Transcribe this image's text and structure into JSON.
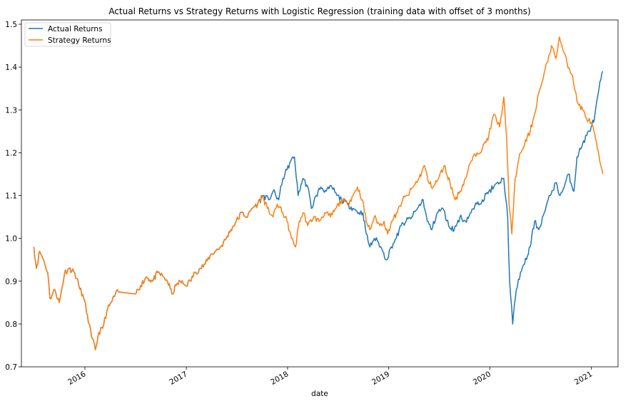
{
  "chart_data": {
    "type": "line",
    "title": "Actual Returns vs Strategy Returns with Logistic Regression (training data with offset of 3 months)",
    "xlabel": "date",
    "ylabel": "",
    "xlim": [
      "2015-05-17",
      "2021-04-07"
    ],
    "ylim": [
      0.7,
      1.51
    ],
    "x_ticks": [
      {
        "date": "2016-01-01",
        "label": "2016"
      },
      {
        "date": "2017-01-01",
        "label": "2017"
      },
      {
        "date": "2018-01-01",
        "label": "2018"
      },
      {
        "date": "2019-01-01",
        "label": "2019"
      },
      {
        "date": "2020-01-01",
        "label": "2020"
      },
      {
        "date": "2021-01-01",
        "label": "2021"
      }
    ],
    "y_ticks": [
      0.7,
      0.8,
      0.9,
      1.0,
      1.1,
      1.2,
      1.3,
      1.4,
      1.5
    ],
    "y_tick_labels": [
      "0.7",
      "0.8",
      "0.9",
      "1.0",
      "1.1",
      "1.2",
      "1.3",
      "1.4",
      "1.5"
    ],
    "legend": {
      "position": "upper-left"
    },
    "grid": false,
    "series": [
      {
        "name": "Actual Returns",
        "color": "#1f77b4",
        "points": [
          [
            "2015-07-01",
            0.98
          ],
          [
            "2015-07-10",
            0.93
          ],
          [
            "2015-07-22",
            0.97
          ],
          [
            "2015-08-05",
            0.95
          ],
          [
            "2015-08-20",
            0.92
          ],
          [
            "2015-08-28",
            0.86
          ],
          [
            "2015-09-15",
            0.88
          ],
          [
            "2015-10-01",
            0.85
          ],
          [
            "2015-10-20",
            0.92
          ],
          [
            "2015-11-05",
            0.93
          ],
          [
            "2015-11-25",
            0.92
          ],
          [
            "2015-12-10",
            0.89
          ],
          [
            "2015-12-28",
            0.86
          ],
          [
            "2016-01-10",
            0.82
          ],
          [
            "2016-01-25",
            0.77
          ],
          [
            "2016-02-08",
            0.74
          ],
          [
            "2016-02-20",
            0.78
          ],
          [
            "2016-03-05",
            0.79
          ],
          [
            "2016-03-20",
            0.83
          ],
          [
            "2016-04-05",
            0.85
          ],
          [
            "2016-04-20",
            0.87
          ],
          [
            "2016-05-01",
            0.875
          ],
          [
            "2016-07-01",
            0.87
          ],
          [
            "2016-07-20",
            0.89
          ],
          [
            "2016-08-10",
            0.91
          ],
          [
            "2016-09-01",
            0.9
          ],
          [
            "2016-09-20",
            0.92
          ],
          [
            "2016-10-10",
            0.91
          ],
          [
            "2016-10-25",
            0.9
          ],
          [
            "2016-11-10",
            0.87
          ],
          [
            "2016-11-25",
            0.89
          ],
          [
            "2016-12-10",
            0.9
          ],
          [
            "2016-12-28",
            0.89
          ],
          [
            "2017-01-15",
            0.9
          ],
          [
            "2017-02-01",
            0.92
          ],
          [
            "2017-02-20",
            0.93
          ],
          [
            "2017-03-10",
            0.94
          ],
          [
            "2017-03-28",
            0.96
          ],
          [
            "2017-04-15",
            0.97
          ],
          [
            "2017-05-05",
            0.98
          ],
          [
            "2017-05-25",
            1.0
          ],
          [
            "2017-06-10",
            1.02
          ],
          [
            "2017-06-30",
            1.04
          ],
          [
            "2017-07-20",
            1.06
          ],
          [
            "2017-08-10",
            1.05
          ],
          [
            "2017-08-25",
            1.07
          ],
          [
            "2017-09-15",
            1.08
          ],
          [
            "2017-10-05",
            1.1
          ],
          [
            "2017-10-25",
            1.09
          ],
          [
            "2017-11-10",
            1.11
          ],
          [
            "2017-11-30",
            1.09
          ],
          [
            "2017-12-15",
            1.14
          ],
          [
            "2017-12-30",
            1.16
          ],
          [
            "2018-01-12",
            1.18
          ],
          [
            "2018-01-26",
            1.19
          ],
          [
            "2018-02-08",
            1.1
          ],
          [
            "2018-02-25",
            1.14
          ],
          [
            "2018-03-15",
            1.12
          ],
          [
            "2018-03-28",
            1.07
          ],
          [
            "2018-04-15",
            1.1
          ],
          [
            "2018-05-01",
            1.12
          ],
          [
            "2018-05-20",
            1.11
          ],
          [
            "2018-06-10",
            1.12
          ],
          [
            "2018-06-28",
            1.1
          ],
          [
            "2018-07-15",
            1.09
          ],
          [
            "2018-08-05",
            1.08
          ],
          [
            "2018-08-25",
            1.07
          ],
          [
            "2018-09-15",
            1.06
          ],
          [
            "2018-09-30",
            1.06
          ],
          [
            "2018-10-12",
            1.01
          ],
          [
            "2018-10-25",
            0.98
          ],
          [
            "2018-11-10",
            1.0
          ],
          [
            "2018-11-25",
            0.99
          ],
          [
            "2018-12-10",
            0.97
          ],
          [
            "2018-12-24",
            0.95
          ],
          [
            "2019-01-10",
            0.98
          ],
          [
            "2019-01-28",
            1.0
          ],
          [
            "2019-02-15",
            1.03
          ],
          [
            "2019-03-05",
            1.04
          ],
          [
            "2019-03-25",
            1.05
          ],
          [
            "2019-04-15",
            1.07
          ],
          [
            "2019-05-05",
            1.09
          ],
          [
            "2019-05-20",
            1.04
          ],
          [
            "2019-06-05",
            1.02
          ],
          [
            "2019-06-25",
            1.06
          ],
          [
            "2019-07-15",
            1.07
          ],
          [
            "2019-08-05",
            1.03
          ],
          [
            "2019-08-25",
            1.02
          ],
          [
            "2019-09-15",
            1.05
          ],
          [
            "2019-10-05",
            1.04
          ],
          [
            "2019-10-25",
            1.06
          ],
          [
            "2019-11-15",
            1.08
          ],
          [
            "2019-12-05",
            1.09
          ],
          [
            "2019-12-28",
            1.11
          ],
          [
            "2020-01-15",
            1.12
          ],
          [
            "2020-02-05",
            1.13
          ],
          [
            "2020-02-20",
            1.14
          ],
          [
            "2020-03-05",
            1.05
          ],
          [
            "2020-03-12",
            0.9
          ],
          [
            "2020-03-23",
            0.8
          ],
          [
            "2020-04-05",
            0.88
          ],
          [
            "2020-04-20",
            0.92
          ],
          [
            "2020-05-05",
            0.94
          ],
          [
            "2020-05-25",
            0.98
          ],
          [
            "2020-06-10",
            1.04
          ],
          [
            "2020-06-25",
            1.02
          ],
          [
            "2020-07-15",
            1.06
          ],
          [
            "2020-08-05",
            1.1
          ],
          [
            "2020-08-25",
            1.13
          ],
          [
            "2020-09-10",
            1.1
          ],
          [
            "2020-09-25",
            1.12
          ],
          [
            "2020-10-10",
            1.15
          ],
          [
            "2020-10-30",
            1.11
          ],
          [
            "2020-11-10",
            1.19
          ],
          [
            "2020-11-30",
            1.22
          ],
          [
            "2020-12-15",
            1.24
          ],
          [
            "2020-12-31",
            1.26
          ],
          [
            "2021-01-12",
            1.28
          ],
          [
            "2021-01-26",
            1.34
          ],
          [
            "2021-02-04",
            1.37
          ],
          [
            "2021-02-11",
            1.39
          ]
        ]
      },
      {
        "name": "Strategy Returns",
        "color": "#ff7f0e",
        "points": [
          [
            "2015-07-01",
            0.98
          ],
          [
            "2015-07-10",
            0.93
          ],
          [
            "2015-07-22",
            0.97
          ],
          [
            "2015-08-05",
            0.95
          ],
          [
            "2015-08-20",
            0.92
          ],
          [
            "2015-08-28",
            0.86
          ],
          [
            "2015-09-15",
            0.88
          ],
          [
            "2015-10-01",
            0.85
          ],
          [
            "2015-10-20",
            0.92
          ],
          [
            "2015-11-05",
            0.93
          ],
          [
            "2015-11-25",
            0.92
          ],
          [
            "2015-12-10",
            0.89
          ],
          [
            "2015-12-28",
            0.86
          ],
          [
            "2016-01-10",
            0.82
          ],
          [
            "2016-01-25",
            0.77
          ],
          [
            "2016-02-08",
            0.74
          ],
          [
            "2016-02-20",
            0.78
          ],
          [
            "2016-03-05",
            0.79
          ],
          [
            "2016-03-20",
            0.83
          ],
          [
            "2016-04-05",
            0.85
          ],
          [
            "2016-04-20",
            0.87
          ],
          [
            "2016-05-01",
            0.875
          ],
          [
            "2016-07-01",
            0.87
          ],
          [
            "2016-07-20",
            0.89
          ],
          [
            "2016-08-10",
            0.91
          ],
          [
            "2016-09-01",
            0.9
          ],
          [
            "2016-09-20",
            0.92
          ],
          [
            "2016-10-10",
            0.91
          ],
          [
            "2016-10-25",
            0.9
          ],
          [
            "2016-11-10",
            0.87
          ],
          [
            "2016-11-25",
            0.89
          ],
          [
            "2016-12-10",
            0.9
          ],
          [
            "2016-12-28",
            0.89
          ],
          [
            "2017-01-15",
            0.9
          ],
          [
            "2017-02-01",
            0.92
          ],
          [
            "2017-02-20",
            0.93
          ],
          [
            "2017-03-10",
            0.94
          ],
          [
            "2017-03-28",
            0.96
          ],
          [
            "2017-04-15",
            0.97
          ],
          [
            "2017-05-05",
            0.98
          ],
          [
            "2017-05-25",
            1.0
          ],
          [
            "2017-06-10",
            1.02
          ],
          [
            "2017-06-30",
            1.04
          ],
          [
            "2017-07-20",
            1.06
          ],
          [
            "2017-08-10",
            1.05
          ],
          [
            "2017-08-25",
            1.07
          ],
          [
            "2017-09-15",
            1.08
          ],
          [
            "2017-10-01",
            1.1
          ],
          [
            "2017-10-20",
            1.07
          ],
          [
            "2017-11-10",
            1.05
          ],
          [
            "2017-11-25",
            1.08
          ],
          [
            "2017-12-15",
            1.06
          ],
          [
            "2017-12-30",
            1.04
          ],
          [
            "2018-01-15",
            1.0
          ],
          [
            "2018-01-30",
            0.98
          ],
          [
            "2018-02-12",
            1.04
          ],
          [
            "2018-02-28",
            1.06
          ],
          [
            "2018-03-15",
            1.03
          ],
          [
            "2018-04-05",
            1.05
          ],
          [
            "2018-04-25",
            1.04
          ],
          [
            "2018-05-15",
            1.06
          ],
          [
            "2018-06-05",
            1.05
          ],
          [
            "2018-06-25",
            1.07
          ],
          [
            "2018-07-15",
            1.09
          ],
          [
            "2018-08-05",
            1.08
          ],
          [
            "2018-08-25",
            1.1
          ],
          [
            "2018-09-10",
            1.12
          ],
          [
            "2018-09-28",
            1.09
          ],
          [
            "2018-10-12",
            1.04
          ],
          [
            "2018-10-25",
            1.02
          ],
          [
            "2018-11-10",
            1.05
          ],
          [
            "2018-11-30",
            1.03
          ],
          [
            "2018-12-15",
            1.04
          ],
          [
            "2018-12-28",
            1.01
          ],
          [
            "2019-01-12",
            1.04
          ],
          [
            "2019-02-01",
            1.06
          ],
          [
            "2019-02-20",
            1.09
          ],
          [
            "2019-03-10",
            1.1
          ],
          [
            "2019-03-30",
            1.12
          ],
          [
            "2019-04-20",
            1.14
          ],
          [
            "2019-05-10",
            1.17
          ],
          [
            "2019-05-25",
            1.13
          ],
          [
            "2019-06-10",
            1.12
          ],
          [
            "2019-06-30",
            1.14
          ],
          [
            "2019-07-20",
            1.17
          ],
          [
            "2019-08-10",
            1.13
          ],
          [
            "2019-08-28",
            1.09
          ],
          [
            "2019-09-15",
            1.11
          ],
          [
            "2019-10-05",
            1.14
          ],
          [
            "2019-10-25",
            1.18
          ],
          [
            "2019-11-15",
            1.2
          ],
          [
            "2019-12-05",
            1.21
          ],
          [
            "2019-12-28",
            1.24
          ],
          [
            "2020-01-15",
            1.29
          ],
          [
            "2020-02-05",
            1.26
          ],
          [
            "2020-02-20",
            1.33
          ],
          [
            "2020-03-01",
            1.24
          ],
          [
            "2020-03-10",
            1.08
          ],
          [
            "2020-03-20",
            1.01
          ],
          [
            "2020-04-01",
            1.14
          ],
          [
            "2020-04-20",
            1.2
          ],
          [
            "2020-05-05",
            1.22
          ],
          [
            "2020-05-25",
            1.25
          ],
          [
            "2020-06-10",
            1.29
          ],
          [
            "2020-06-25",
            1.34
          ],
          [
            "2020-07-10",
            1.37
          ],
          [
            "2020-07-25",
            1.41
          ],
          [
            "2020-08-10",
            1.45
          ],
          [
            "2020-08-25",
            1.42
          ],
          [
            "2020-09-08",
            1.47
          ],
          [
            "2020-09-20",
            1.44
          ],
          [
            "2020-10-05",
            1.41
          ],
          [
            "2020-10-25",
            1.38
          ],
          [
            "2020-11-10",
            1.32
          ],
          [
            "2020-11-30",
            1.3
          ],
          [
            "2020-12-15",
            1.28
          ],
          [
            "2020-12-31",
            1.27
          ],
          [
            "2021-01-10",
            1.25
          ],
          [
            "2021-01-22",
            1.21
          ],
          [
            "2021-02-04",
            1.17
          ],
          [
            "2021-02-11",
            1.15
          ]
        ]
      }
    ]
  }
}
